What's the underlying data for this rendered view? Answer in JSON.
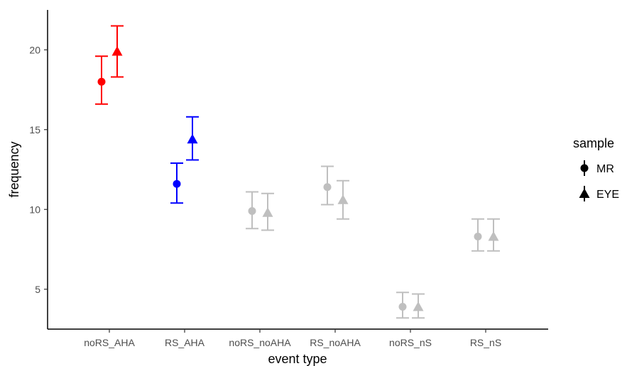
{
  "chart_data": {
    "type": "scatter",
    "title": "",
    "xlabel": "event type",
    "ylabel": "frequency",
    "categories": [
      "noRS_AHA",
      "RS_AHA",
      "noRS_noAHA",
      "RS_noAHA",
      "noRS_nS",
      "RS_nS"
    ],
    "yticks": [
      "5",
      "10",
      "15",
      "20"
    ],
    "ylim": [
      2.5,
      22.5
    ],
    "grid": false,
    "legend": {
      "title": "sample",
      "placement": "right",
      "entries": [
        {
          "label": "MR",
          "shape": "circle"
        },
        {
          "label": "EYE",
          "shape": "triangle"
        }
      ]
    },
    "category_colors": [
      "#ff0000",
      "#0000ff",
      "#bfbfbf",
      "#bfbfbf",
      "#bfbfbf",
      "#bfbfbf"
    ],
    "series": [
      {
        "name": "MR",
        "shape": "circle",
        "values": [
          18.0,
          11.6,
          9.9,
          11.4,
          3.9,
          8.3
        ],
        "lower": [
          16.6,
          10.4,
          8.8,
          10.3,
          3.2,
          7.4
        ],
        "upper": [
          19.6,
          12.9,
          11.1,
          12.7,
          4.8,
          9.4
        ]
      },
      {
        "name": "EYE",
        "shape": "triangle",
        "values": [
          19.9,
          14.4,
          9.8,
          10.6,
          3.9,
          8.3
        ],
        "lower": [
          18.3,
          13.1,
          8.7,
          9.4,
          3.2,
          7.4
        ],
        "upper": [
          21.5,
          15.8,
          11.0,
          11.8,
          4.7,
          9.4
        ]
      }
    ]
  }
}
